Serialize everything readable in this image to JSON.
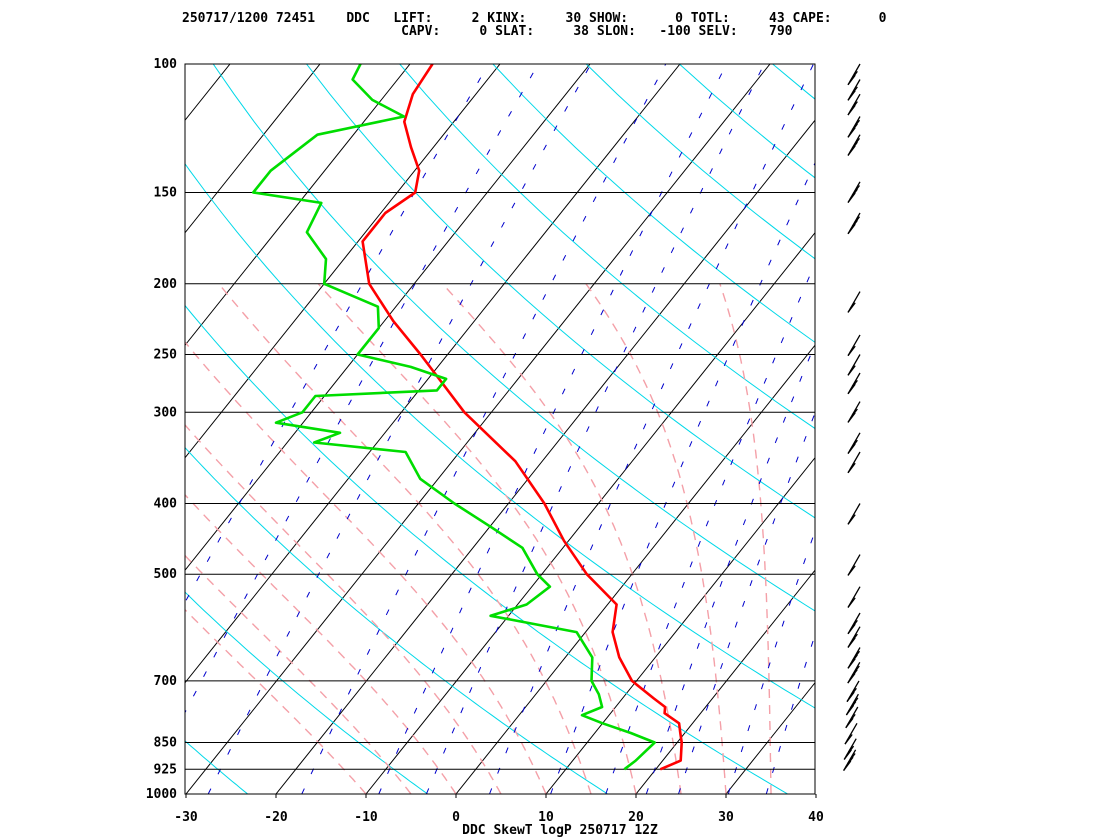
{
  "header": {
    "line1": "250717/1200 72451    DDC   LIFT:     2 KINX:     30 SHOW:      0 TOTL:     43 CAPE:      0",
    "line2": "                            CAPV:     0 SLAT:     38 SLON:   -100 SELV:    790"
  },
  "chart_data": {
    "type": "line",
    "title": "DDC SkewT logP 250717 12Z",
    "xlabel": "",
    "ylabel": "",
    "x_ticks": [
      "-30",
      "-20",
      "-10",
      "0",
      "10",
      "20",
      "30",
      "40"
    ],
    "y_ticks": [
      "100",
      "150",
      "200",
      "250",
      "300",
      "400",
      "500",
      "700",
      "850",
      "925",
      "1000"
    ],
    "pressure_range_hPa": [
      1000,
      100
    ],
    "temperature_range_C_at_1000hPa": [
      -30,
      40
    ],
    "skew": "45-degree skewed isotherms",
    "background_lines": [
      "isobars",
      "isotherms",
      "dry adiabats",
      "moist adiabats",
      "mixing ratio lines"
    ],
    "series": [
      {
        "color": "#ff0000",
        "role": "temperature",
        "points": [
          {
            "p": 925,
            "t": 20.5
          },
          {
            "p": 900,
            "t": 22.0
          },
          {
            "p": 850,
            "t": 20.5
          },
          {
            "p": 825,
            "t": 19.5
          },
          {
            "p": 800,
            "t": 18.5
          },
          {
            "p": 775,
            "t": 16.0
          },
          {
            "p": 760,
            "t": 15.5
          },
          {
            "p": 740,
            "t": 13.5
          },
          {
            "p": 700,
            "t": 9.5
          },
          {
            "p": 650,
            "t": 6.0
          },
          {
            "p": 600,
            "t": 3.0
          },
          {
            "p": 550,
            "t": 1.0
          },
          {
            "p": 500,
            "t": -5.0
          },
          {
            "p": 450,
            "t": -10.5
          },
          {
            "p": 400,
            "t": -16.0
          },
          {
            "p": 350,
            "t": -23.0
          },
          {
            "p": 300,
            "t": -33.0
          },
          {
            "p": 250,
            "t": -43.0
          },
          {
            "p": 225,
            "t": -49.0
          },
          {
            "p": 200,
            "t": -55.0
          },
          {
            "p": 175,
            "t": -59.5
          },
          {
            "p": 160,
            "t": -59.5
          },
          {
            "p": 150,
            "t": -58.0
          },
          {
            "p": 140,
            "t": -59.5
          },
          {
            "p": 130,
            "t": -62.5
          },
          {
            "p": 120,
            "t": -65.5
          },
          {
            "p": 110,
            "t": -67.0
          },
          {
            "p": 100,
            "t": -67.5
          }
        ]
      },
      {
        "color": "#00dd00",
        "role": "dewpoint",
        "points": [
          {
            "p": 925,
            "t": 16.5
          },
          {
            "p": 900,
            "t": 17.0
          },
          {
            "p": 850,
            "t": 17.5
          },
          {
            "p": 825,
            "t": 14.0
          },
          {
            "p": 800,
            "t": 10.0
          },
          {
            "p": 780,
            "t": 7.0
          },
          {
            "p": 760,
            "t": 8.5
          },
          {
            "p": 730,
            "t": 7.0
          },
          {
            "p": 700,
            "t": 5.0
          },
          {
            "p": 650,
            "t": 3.0
          },
          {
            "p": 600,
            "t": -1.0
          },
          {
            "p": 570,
            "t": -12.0
          },
          {
            "p": 550,
            "t": -9.0
          },
          {
            "p": 520,
            "t": -8.0
          },
          {
            "p": 500,
            "t": -10.5
          },
          {
            "p": 460,
            "t": -14.5
          },
          {
            "p": 430,
            "t": -20.0
          },
          {
            "p": 400,
            "t": -26.0
          },
          {
            "p": 370,
            "t": -32.0
          },
          {
            "p": 340,
            "t": -36.0
          },
          {
            "p": 330,
            "t": -47.0
          },
          {
            "p": 320,
            "t": -45.0
          },
          {
            "p": 310,
            "t": -53.0
          },
          {
            "p": 300,
            "t": -51.0
          },
          {
            "p": 285,
            "t": -51.0
          },
          {
            "p": 280,
            "t": -38.0
          },
          {
            "p": 270,
            "t": -38.0
          },
          {
            "p": 260,
            "t": -43.0
          },
          {
            "p": 250,
            "t": -50.0
          },
          {
            "p": 230,
            "t": -50.0
          },
          {
            "p": 215,
            "t": -52.0
          },
          {
            "p": 200,
            "t": -60.0
          },
          {
            "p": 185,
            "t": -62.0
          },
          {
            "p": 170,
            "t": -66.5
          },
          {
            "p": 155,
            "t": -67.5
          },
          {
            "p": 150,
            "t": -76.0
          },
          {
            "p": 140,
            "t": -76.0
          },
          {
            "p": 125,
            "t": -74.0
          },
          {
            "p": 118,
            "t": -66.0
          },
          {
            "p": 112,
            "t": -71.0
          },
          {
            "p": 105,
            "t": -75.0
          },
          {
            "p": 100,
            "t": -75.5
          }
        ]
      }
    ],
    "wind_barbs": [
      {
        "p": 100,
        "speed_kt": 20
      },
      {
        "p": 105,
        "speed_kt": 20
      },
      {
        "p": 110,
        "speed_kt": 25
      },
      {
        "p": 118,
        "speed_kt": 30
      },
      {
        "p": 125,
        "speed_kt": 30
      },
      {
        "p": 145,
        "speed_kt": 30
      },
      {
        "p": 160,
        "speed_kt": 35
      },
      {
        "p": 205,
        "speed_kt": 15
      },
      {
        "p": 235,
        "speed_kt": 15
      },
      {
        "p": 250,
        "speed_kt": 15
      },
      {
        "p": 265,
        "speed_kt": 25
      },
      {
        "p": 290,
        "speed_kt": 25
      },
      {
        "p": 320,
        "speed_kt": 20
      },
      {
        "p": 340,
        "speed_kt": 15
      },
      {
        "p": 400,
        "speed_kt": 10
      },
      {
        "p": 470,
        "speed_kt": 10
      },
      {
        "p": 520,
        "speed_kt": 10
      },
      {
        "p": 565,
        "speed_kt": 20
      },
      {
        "p": 590,
        "speed_kt": 25
      },
      {
        "p": 630,
        "speed_kt": 30
      },
      {
        "p": 660,
        "speed_kt": 30
      },
      {
        "p": 700,
        "speed_kt": 25
      },
      {
        "p": 730,
        "speed_kt": 30
      },
      {
        "p": 760,
        "speed_kt": 20
      },
      {
        "p": 800,
        "speed_kt": 15
      },
      {
        "p": 840,
        "speed_kt": 25
      },
      {
        "p": 870,
        "speed_kt": 35
      }
    ],
    "colors": {
      "temperature": "#ff0000",
      "dewpoint": "#00dd00",
      "isobar": "#000000",
      "isotherm": "#000000",
      "dry_adiabat": "#00d8e8",
      "moist_adiabat": "#f4a0a8",
      "mixing_ratio": "#0000cc"
    }
  }
}
